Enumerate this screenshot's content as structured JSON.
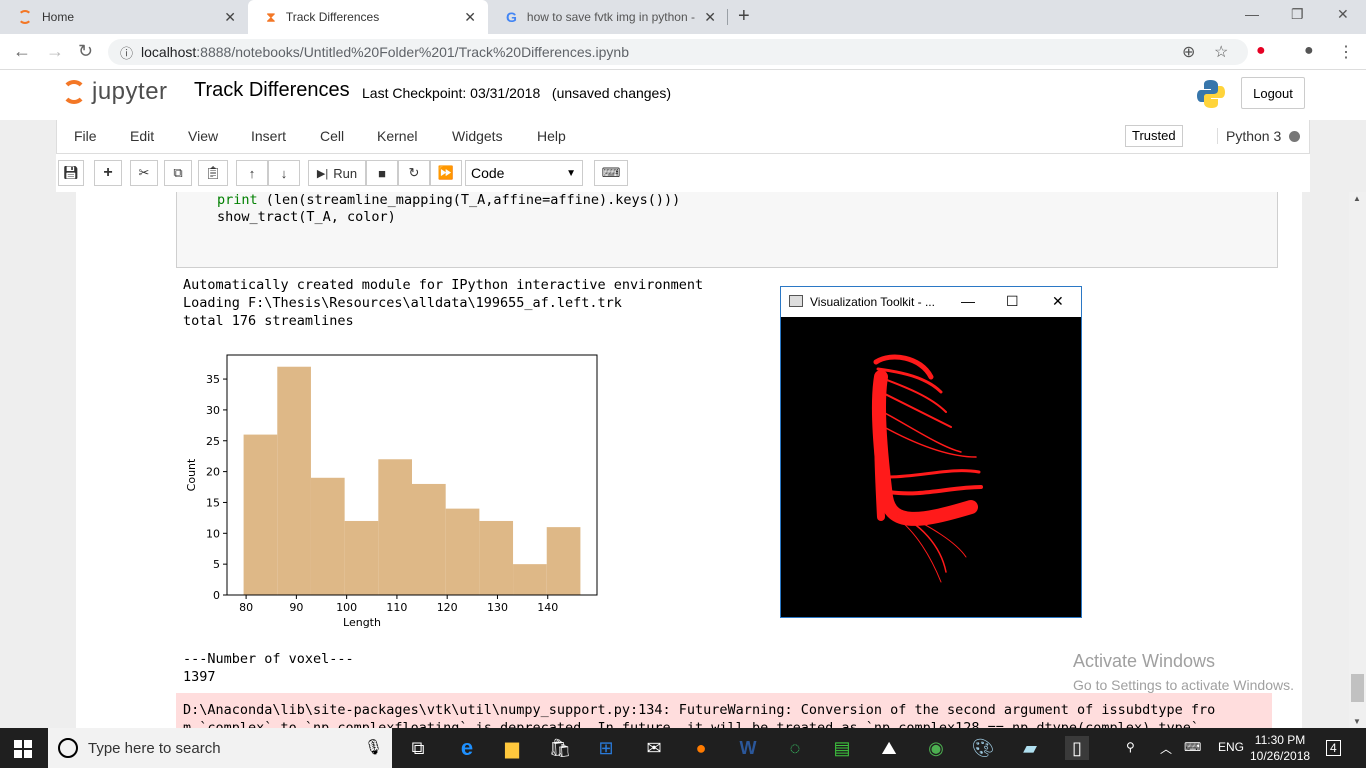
{
  "browser": {
    "tabs": [
      {
        "title": "Home",
        "icon": "jupyter-icon"
      },
      {
        "title": "Track Differences",
        "icon": "hourglass-icon"
      },
      {
        "title": "how to save fvtk img in python -",
        "icon": "google-icon"
      }
    ],
    "url_host": "localhost",
    "url_path": ":8888/notebooks/Untitled%20Folder%201/Track%20Differences.ipynb"
  },
  "header": {
    "logo_text": "jupyter",
    "notebook_title": "Track Differences",
    "checkpoint": "Last Checkpoint: 03/31/2018",
    "unsaved": "(unsaved changes)",
    "logout": "Logout"
  },
  "menu": {
    "items": [
      "File",
      "Edit",
      "View",
      "Insert",
      "Cell",
      "Kernel",
      "Widgets",
      "Help"
    ],
    "trusted": "Trusted",
    "kernel": "Python 3"
  },
  "toolbar": {
    "run_label": "Run",
    "cell_type": "Code"
  },
  "code": {
    "line1_kw": "print",
    "line1_rest": " (len(streamline_mapping(T_A,affine=affine).keys()))",
    "line2": "show_tract(T_A, color)"
  },
  "output": {
    "line1": "Automatically created module for IPython interactive environment",
    "line2": "Loading F:\\Thesis\\Resources\\alldata\\199655_af.left.trk",
    "line3": "total 176 streamlines",
    "voxel_heading": "---Number of voxel---",
    "voxel_value": "1397",
    "stderr_line1": "D:\\Anaconda\\lib\\site-packages\\vtk\\util\\numpy_support.py:134: FutureWarning: Conversion of the second argument of issubdtype fro",
    "stderr_line2": "m `complex` to `np.complexfloating` is deprecated. In future, it will be treated as `np.complex128 == np.dtype(complex).type`."
  },
  "chart_data": {
    "type": "bar",
    "bin_edges": [
      79.5,
      86.2,
      92.9,
      99.6,
      106.3,
      113.0,
      119.7,
      126.4,
      133.1,
      139.8,
      146.5
    ],
    "values": [
      26,
      37,
      19,
      12,
      22,
      18,
      14,
      12,
      5,
      11
    ],
    "xticks": [
      80,
      90,
      100,
      110,
      120,
      130,
      140
    ],
    "yticks": [
      0,
      5,
      10,
      15,
      20,
      25,
      30,
      35
    ],
    "xlim": [
      76.2,
      149.8
    ],
    "ylim": [
      0,
      38.9
    ],
    "xlabel": "Length",
    "ylabel": "Count",
    "color": "#deb887"
  },
  "vtk": {
    "title": "Visualization Toolkit - ..."
  },
  "watermark": {
    "line1": "Activate Windows",
    "line2": "Go to Settings to activate Windows."
  },
  "taskbar": {
    "search_placeholder": "Type here to search",
    "lang": "ENG",
    "time": "11:30 PM",
    "date": "10/26/2018",
    "notif_count": "4"
  }
}
